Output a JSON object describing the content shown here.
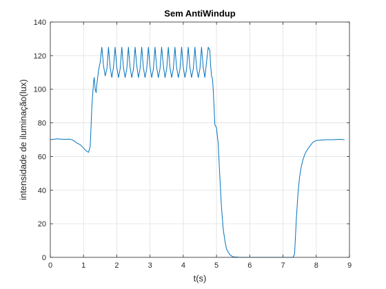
{
  "chart_data": {
    "type": "line",
    "title": "Sem AntiWindup",
    "xlabel": "t(s)",
    "ylabel": "intensidade de iluminação(lux)",
    "xlim": [
      0,
      9
    ],
    "ylim": [
      0,
      140
    ],
    "xticks": [
      0,
      1,
      2,
      3,
      4,
      5,
      6,
      7,
      8,
      9
    ],
    "yticks": [
      0,
      20,
      40,
      60,
      80,
      100,
      120,
      140
    ],
    "xtick_labels": [
      "0",
      "1",
      "2",
      "3",
      "4",
      "5",
      "6",
      "7",
      "8",
      "9"
    ],
    "ytick_labels": [
      "0",
      "20",
      "40",
      "60",
      "80",
      "100",
      "120",
      "140"
    ],
    "grid": true,
    "legend": null,
    "series": [
      {
        "color": "#0072bd",
        "x": [
          0,
          0.2,
          0.4,
          0.6,
          0.7,
          0.8,
          0.9,
          1.0,
          1.05,
          1.1,
          1.15,
          1.2,
          1.25,
          1.3,
          1.32,
          1.35,
          1.38,
          1.4,
          1.45,
          1.5,
          1.55,
          1.6,
          1.65,
          1.7,
          1.75,
          1.8,
          1.85,
          1.9,
          1.95,
          2.0,
          2.05,
          2.1,
          2.15,
          2.2,
          2.25,
          2.3,
          2.35,
          2.4,
          2.45,
          2.5,
          2.55,
          2.6,
          2.65,
          2.7,
          2.75,
          2.8,
          2.85,
          2.9,
          2.95,
          3.0,
          3.05,
          3.1,
          3.15,
          3.2,
          3.25,
          3.3,
          3.35,
          3.4,
          3.45,
          3.5,
          3.55,
          3.6,
          3.65,
          3.7,
          3.75,
          3.8,
          3.85,
          3.9,
          3.95,
          4.0,
          4.05,
          4.1,
          4.15,
          4.2,
          4.25,
          4.3,
          4.35,
          4.4,
          4.45,
          4.5,
          4.55,
          4.6,
          4.65,
          4.7,
          4.75,
          4.8,
          4.82,
          4.85,
          4.88,
          4.9,
          4.93,
          4.95,
          5.0,
          5.05,
          5.1,
          5.15,
          5.2,
          5.25,
          5.3,
          5.4,
          5.5,
          5.7,
          6.0,
          6.5,
          7.0,
          7.3,
          7.35,
          7.4,
          7.45,
          7.5,
          7.55,
          7.6,
          7.65,
          7.7,
          7.8,
          7.9,
          8.0,
          8.1,
          8.3,
          8.5,
          8.7,
          8.85
        ],
        "y": [
          70,
          70.5,
          70.2,
          70.3,
          69.5,
          68,
          67,
          65,
          64,
          63,
          62.5,
          66,
          90,
          104,
          107,
          100,
          98,
          103,
          111,
          116,
          125,
          114,
          108,
          112,
          125,
          113,
          107,
          113,
          125,
          113,
          107,
          112,
          125,
          113,
          107,
          112,
          125,
          113,
          107,
          112,
          125,
          114,
          107,
          112,
          125,
          113,
          107,
          112,
          125,
          113,
          107,
          112,
          125,
          113,
          107,
          112,
          125,
          114,
          107,
          112,
          125,
          113,
          107,
          112,
          125,
          113,
          107,
          112,
          125,
          113,
          107,
          112,
          125,
          113,
          107,
          112,
          125,
          113,
          107,
          112,
          125,
          113,
          107,
          116,
          125,
          123,
          115,
          108,
          106,
          100,
          88,
          79,
          77,
          68,
          48,
          30,
          17,
          10,
          5,
          1.5,
          0.3,
          0,
          0,
          0,
          0,
          0,
          2,
          22,
          38,
          48,
          54,
          58,
          61,
          63,
          66,
          68.5,
          69.5,
          69.7,
          70,
          70,
          70.2,
          70
        ]
      }
    ]
  }
}
